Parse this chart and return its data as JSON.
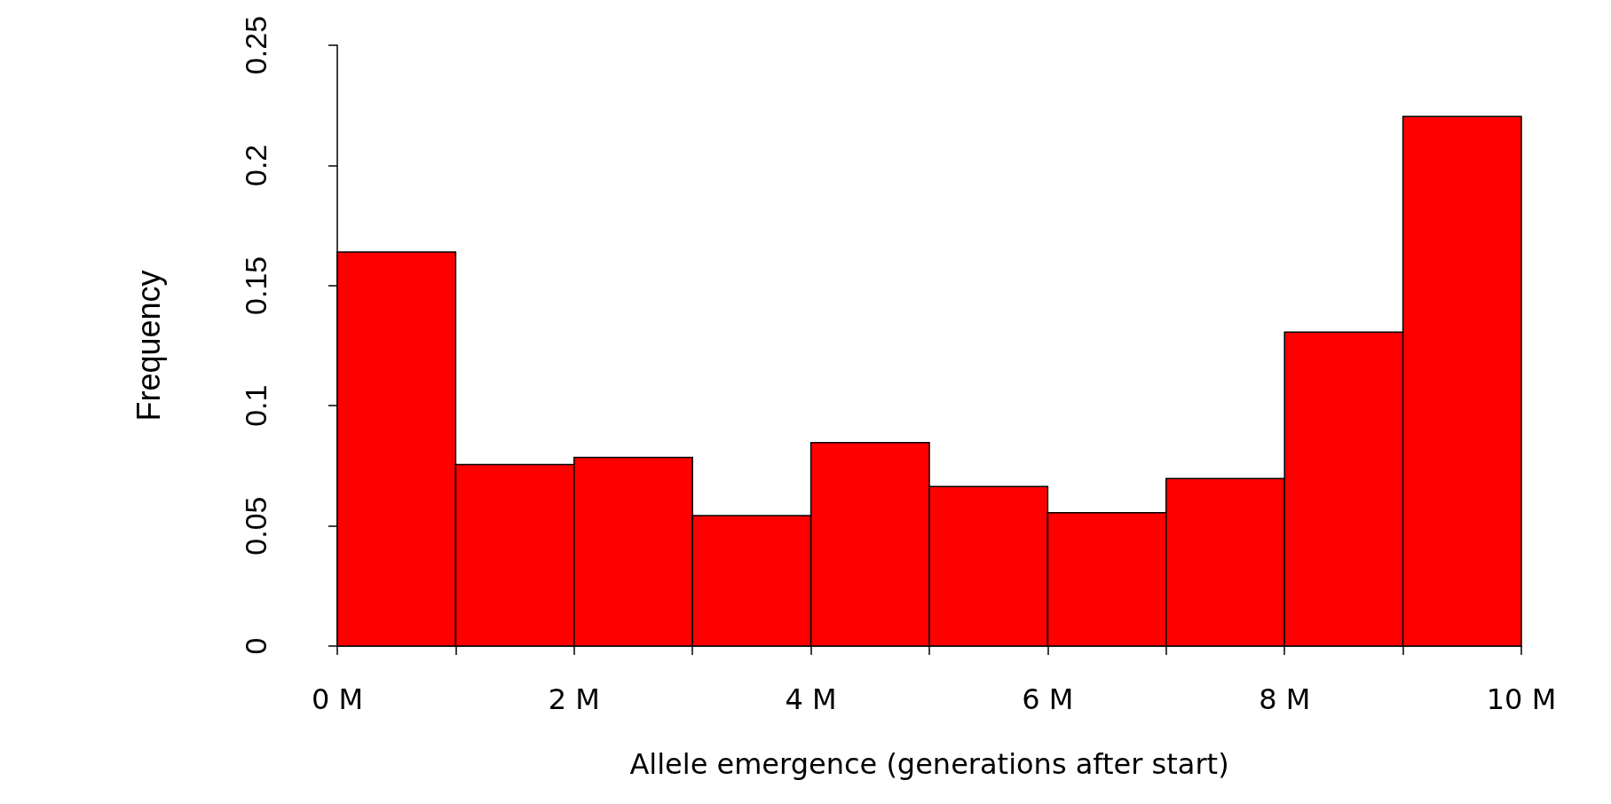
{
  "chart_data": {
    "type": "histogram",
    "xlabel": "Allele emergence (generations after start)",
    "ylabel": "Frequency",
    "bins": [
      0,
      1,
      2,
      3,
      4,
      5,
      6,
      7,
      8,
      9,
      10
    ],
    "values": [
      0.164,
      0.0755,
      0.0785,
      0.0543,
      0.0847,
      0.0664,
      0.0555,
      0.0697,
      0.1306,
      0.2204
    ],
    "color": "#ff0000",
    "xlim": [
      0,
      10
    ],
    "xticks": [
      {
        "value": 0,
        "label": "0 M"
      },
      {
        "value": 1,
        "label": null
      },
      {
        "value": 2,
        "label": "2 M"
      },
      {
        "value": 3,
        "label": null
      },
      {
        "value": 4,
        "label": "4 M"
      },
      {
        "value": 5,
        "label": null
      },
      {
        "value": 6,
        "label": "6 M"
      },
      {
        "value": 7,
        "label": null
      },
      {
        "value": 8,
        "label": "8 M"
      },
      {
        "value": 9,
        "label": null
      },
      {
        "value": 10,
        "label": "10 M"
      }
    ],
    "ylim": [
      0,
      0.25
    ],
    "yticks": [
      0,
      0.05,
      0.1,
      0.15,
      0.2,
      0.25
    ],
    "grid": false
  }
}
